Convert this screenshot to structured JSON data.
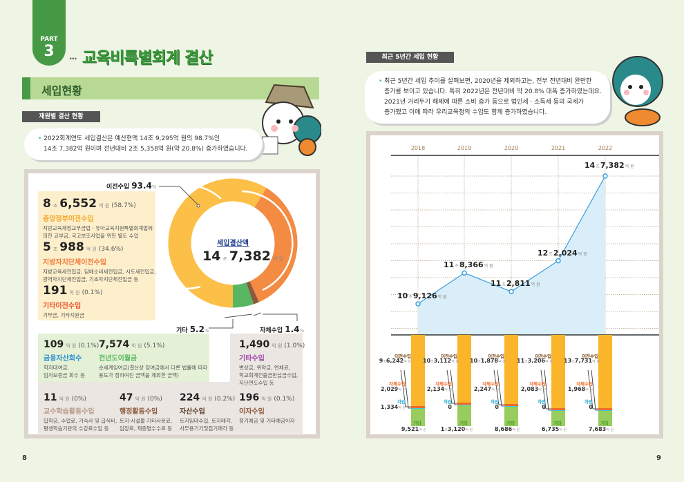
{
  "left": {
    "part_label": "PART",
    "part_number": "3",
    "title": "교육비특별회계 결산",
    "section": "세입현황",
    "subheader": "재원별 결산 현황",
    "bubble": [
      "2022회계연도 세입결산은 예산현액 14조 9,295억 원의 98.7%인",
      "14조 7,382억 원이며 전년대비 2조 5,358억 원(약 20.8%) 증가하였습니다."
    ],
    "page_number": "8",
    "donut": {
      "center_title": "세입결산액",
      "center_jo": "14",
      "center_eok": "7,382",
      "unit_jo": "조",
      "unit_eok": "억 원",
      "label_transfer": "이전수입",
      "label_transfer_pct": "93.4",
      "label_other": "기타",
      "label_other_pct": "5.2",
      "label_own": "자체수입",
      "label_own_pct": "1.4",
      "pct_sign": "%",
      "segments": [
        {
          "name": "중앙정부이전수입",
          "percent": 58.7,
          "color": "#fcbf47"
        },
        {
          "name": "지방자치단체이전수입",
          "percent": 34.6,
          "color": "#f38b43"
        },
        {
          "name": "기타이전수입",
          "percent": 0.1,
          "color": "#e8502a"
        },
        {
          "name": "자체수입",
          "percent": 1.4,
          "color": "#8a5a3c"
        },
        {
          "name": "기타",
          "percent": 5.2,
          "color": "#58b662"
        }
      ]
    },
    "items": [
      {
        "jo": "8",
        "eok": "6,552",
        "pct": "(58.7%)",
        "category": "중앙정부이전수입",
        "color": "#f5a623",
        "desc": [
          "지방교육재정교부금법 · 유아교육지원특별회계법에",
          "의한 교부금, 국고보조사업을 위한 별도 수입"
        ]
      },
      {
        "jo": "5",
        "eok": "988",
        "pct": "(34.6%)",
        "category": "지방자치단체이전수입",
        "color": "#f07a3a",
        "desc": [
          "지방교육세전입금, 담배소비세전입금, 시도세전입금,",
          "광역자치단체전입금, 기초자치단체전입금 등"
        ]
      },
      {
        "eok": "191",
        "pct": "(0.1%)",
        "category": "기타이전수입",
        "color": "#e8502a",
        "desc": [
          "기부금, 기타지원금"
        ]
      },
      {
        "eok": "109",
        "pct": "(0.1%)",
        "category": "금융자산회수",
        "color": "#2f8fd0",
        "desc": [
          "학자대여금,",
          "임차보증금 회수 등"
        ]
      },
      {
        "eok": "7,574",
        "pct": "(5.1%)",
        "category": "전년도이월금",
        "color": "#5ab85f",
        "desc": [
          "순세계잉여금(결산상 잉여금에서 다른 법률에 따라",
          "용도가 정하여진 금액을 제외한 금액)"
        ]
      },
      {
        "eok": "1,490",
        "pct": "(1.0%)",
        "category": "기타수입",
        "color": "#a04aa8",
        "desc": [
          "변상금, 위약금, 연체료,",
          "학교회계전출금반납금수입,",
          "지난연도수입 등"
        ]
      },
      {
        "eok": "11",
        "pct": "(0%)",
        "category": "교수학습활동수입",
        "color": "#b89a8a",
        "desc": [
          "입학금, 수업료, 기숙사 및 급식비,",
          "평생학습기관의 수강료수입 등"
        ]
      },
      {
        "eok": "47",
        "pct": "(0%)",
        "category": "행정활동수입",
        "color": "#8a5a3c",
        "desc": [
          "토지·시설물·기타사용료,",
          "입장료, 제증명수수료 등"
        ]
      },
      {
        "eok": "224",
        "pct": "(0.2%)",
        "category": "자산수입",
        "color": "#5a3a2a",
        "desc": [
          "토지임대수입, 토지매각,",
          "사무용기기및집기매각 등"
        ]
      },
      {
        "eok": "196",
        "pct": "(0.1%)",
        "category": "이자수입",
        "color": "#8a5a3c",
        "desc": [
          "정기예금 및 기타예금이자"
        ]
      }
    ],
    "unit_jo": "조",
    "unit_eok": "억 원"
  },
  "right": {
    "subheader": "최근 5년간 세입 현황",
    "bubble": [
      "최근 5년간 세입 추이를 살펴보면, 2020년을 제외하고는, 전부 전년대비 완만한",
      "증가를 보이고 있습니다. 특히 2022년은 전년대비 약 20.8% 대폭 증가하였는데요.",
      "2021년 거리두기 해제에 따른 소비 증가 등으로 법인세 · 소득세 등의 국세가",
      "증가했고 이에 따라 우리교육청의 수입도 함께 증가하였습니다."
    ],
    "page_number": "9",
    "bar_labels": {
      "transfer": "이전수입",
      "own": "자체수입",
      "debt": "차입",
      "other": "기타"
    },
    "colors": {
      "line": "#3aa0dc",
      "area": "#d9eef9",
      "transfer": "#fbb52a",
      "own": "#f06a2a",
      "debt": "#3cc8e0",
      "other": "#98cc5e"
    }
  },
  "chart_data": {
    "type": "line",
    "categories": [
      "2018",
      "2019",
      "2020",
      "2021",
      "2022"
    ],
    "values_jo": [
      10.9126,
      11.8366,
      11.2811,
      12.2024,
      14.7382
    ],
    "value_labels": [
      {
        "jo": "10",
        "eok": "9,126"
      },
      {
        "jo": "11",
        "eok": "8,366"
      },
      {
        "jo": "11",
        "eok": "2,811"
      },
      {
        "jo": "12",
        "eok": "2,024"
      },
      {
        "jo": "14",
        "eok": "7,382"
      }
    ],
    "breakdown": [
      {
        "transfer": {
          "jo": "9",
          "eok": "6,242"
        },
        "own": "2,029",
        "debt": "1,334",
        "other": {
          "eok": "9,521"
        }
      },
      {
        "transfer": {
          "jo": "10",
          "eok": "3,112"
        },
        "own": "2,134",
        "debt": "0",
        "other": {
          "jo": "1",
          "eok": "3,120"
        }
      },
      {
        "transfer": {
          "jo": "10",
          "eok": "1,878"
        },
        "own": "2,247",
        "debt": "0",
        "other": {
          "eok": "8,686"
        }
      },
      {
        "transfer": {
          "jo": "11",
          "eok": "3,206"
        },
        "own": "2,083",
        "debt": "0",
        "other": {
          "eok": "6,735"
        }
      },
      {
        "transfer": {
          "jo": "13",
          "eok": "7,731"
        },
        "own": "1,968",
        "debt": "0",
        "other": {
          "eok": "7,683"
        }
      }
    ]
  }
}
